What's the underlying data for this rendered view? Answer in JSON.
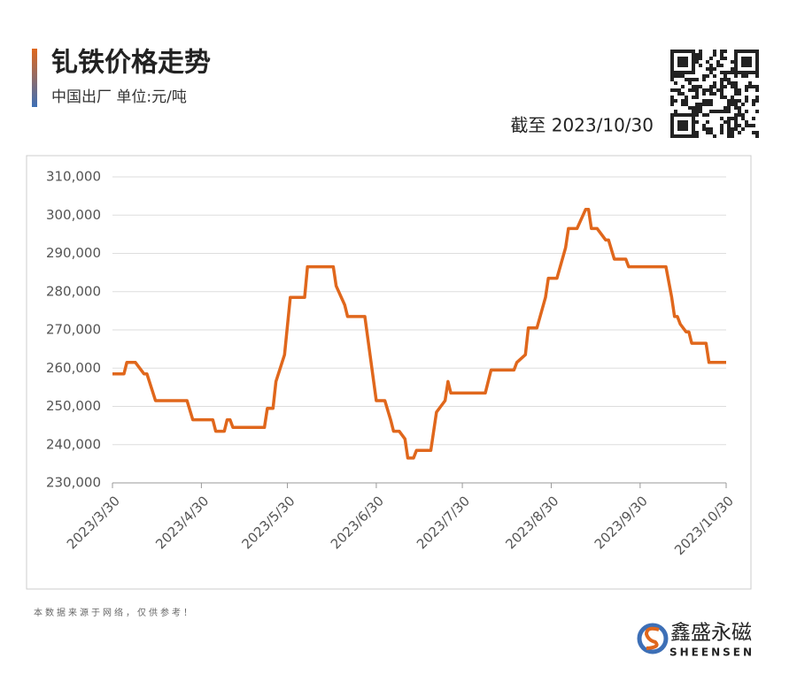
{
  "chart_data": {
    "type": "line",
    "title": "钆铁价格走势",
    "subtitle": "中国出厂 单位:元/吨",
    "date_note": "截至 2023/10/30",
    "source_note": "本数据来源于网络，仅供参考！",
    "brand": "鑫盛永磁",
    "brand_latin": "SHEENSEN",
    "x": [
      "2023/3/30",
      "2023/4/3",
      "2023/4/4",
      "2023/4/7",
      "2023/4/10",
      "2023/4/11",
      "2023/4/14",
      "2023/4/25",
      "2023/4/27",
      "2023/5/4",
      "2023/5/5",
      "2023/5/8",
      "2023/5/9",
      "2023/5/10",
      "2023/5/11",
      "2023/5/22",
      "2023/5/23",
      "2023/5/25",
      "2023/5/26",
      "2023/5/29",
      "2023/5/31",
      "2023/6/5",
      "2023/6/6",
      "2023/6/15",
      "2023/6/16",
      "2023/6/19",
      "2023/6/20",
      "2023/6/26",
      "2023/6/30",
      "2023/7/3",
      "2023/7/5",
      "2023/7/6",
      "2023/7/8",
      "2023/7/10",
      "2023/7/11",
      "2023/7/13",
      "2023/7/14",
      "2023/7/19",
      "2023/7/21",
      "2023/7/24",
      "2023/7/25",
      "2023/7/26",
      "2023/8/7",
      "2023/8/9",
      "2023/8/17",
      "2023/8/18",
      "2023/8/21",
      "2023/8/22",
      "2023/8/25",
      "2023/8/28",
      "2023/8/29",
      "2023/9/1",
      "2023/9/4",
      "2023/9/5",
      "2023/9/8",
      "2023/9/11",
      "2023/9/12",
      "2023/9/13",
      "2023/9/15",
      "2023/9/18",
      "2023/9/19",
      "2023/9/21",
      "2023/9/25",
      "2023/9/26",
      "2023/10/9",
      "2023/10/11",
      "2023/10/12",
      "2023/10/13",
      "2023/10/14",
      "2023/10/16",
      "2023/10/17",
      "2023/10/18",
      "2023/10/23",
      "2023/10/24",
      "2023/10/30"
    ],
    "series": [
      {
        "color": "#e0671c",
        "values": [
          258500,
          258500,
          261500,
          261500,
          258500,
          258500,
          251500,
          251500,
          246500,
          246500,
          243500,
          243500,
          246500,
          246500,
          244500,
          244500,
          249500,
          249500,
          256500,
          263500,
          278500,
          278500,
          286500,
          286500,
          281500,
          276500,
          273500,
          273500,
          251500,
          251500,
          246500,
          243500,
          243500,
          241500,
          236500,
          236500,
          238500,
          238500,
          248500,
          251500,
          256500,
          253500,
          253500,
          259500,
          259500,
          261500,
          263500,
          270500,
          270500,
          278500,
          283500,
          283500,
          291500,
          296500,
          296500,
          301500,
          301500,
          296500,
          296500,
          293500,
          293500,
          288500,
          288500,
          286500,
          286500,
          278500,
          273500,
          273500,
          271500,
          269500,
          269500,
          266500,
          266500,
          261500,
          261500
        ]
      }
    ],
    "xlim": [
      "2023/3/30",
      "2023/10/30"
    ],
    "xticks": [
      "2023/3/30",
      "2023/4/30",
      "2023/5/30",
      "2023/6/30",
      "2023/7/30",
      "2023/8/30",
      "2023/9/30",
      "2023/10/30"
    ],
    "ylim": [
      230000,
      310000
    ],
    "yticks": [
      {
        "value": 230000,
        "label": "230,000"
      },
      {
        "value": 240000,
        "label": "240,000"
      },
      {
        "value": 250000,
        "label": "250,000"
      },
      {
        "value": 260000,
        "label": "260,000"
      },
      {
        "value": 270000,
        "label": "270,000"
      },
      {
        "value": 280000,
        "label": "280,000"
      },
      {
        "value": 290000,
        "label": "290,000"
      },
      {
        "value": 300000,
        "label": "300,000"
      },
      {
        "value": 310000,
        "label": "310,000"
      }
    ],
    "grid": true
  }
}
